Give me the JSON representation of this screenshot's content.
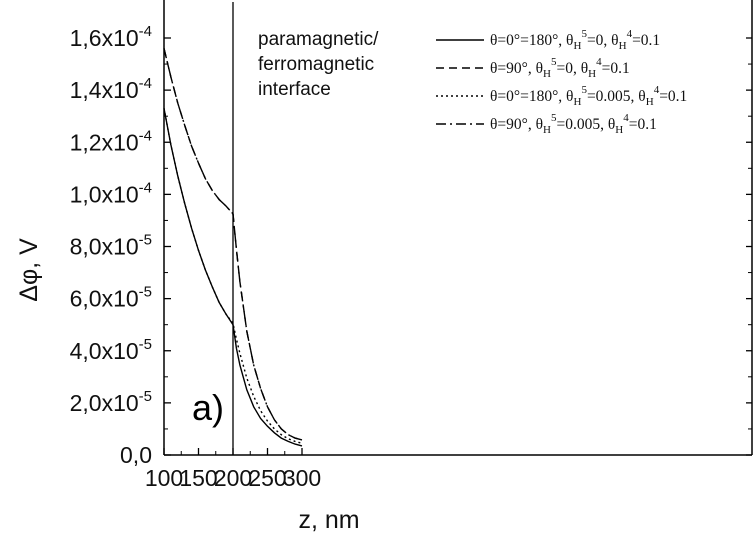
{
  "chart_data": {
    "type": "line",
    "xlabel": "z, nm",
    "ylabel": "Δφ, V",
    "xlim": [
      100,
      300
    ],
    "ylim": [
      0,
      0.00016
    ],
    "x_ticks": [
      100,
      150,
      200,
      250,
      300
    ],
    "x_tick_labels": [
      "100",
      "150",
      "200",
      "250",
      "300"
    ],
    "y_ticks": [
      0,
      2e-05,
      4e-05,
      6e-05,
      8e-05,
      0.0001,
      0.00012,
      0.00014,
      0.00016
    ],
    "y_tick_labels": [
      {
        "mant": "0,0",
        "exp": ""
      },
      {
        "mant": "2,0x10",
        "exp": "-5"
      },
      {
        "mant": "4,0x10",
        "exp": "-5"
      },
      {
        "mant": "6,0x10",
        "exp": "-5"
      },
      {
        "mant": "8,0x10",
        "exp": "-5"
      },
      {
        "mant": "1,0x10",
        "exp": "-4"
      },
      {
        "mant": "1,2x10",
        "exp": "-4"
      },
      {
        "mant": "1,4x10",
        "exp": "-4"
      },
      {
        "mant": "1,6x10",
        "exp": "-4"
      }
    ],
    "grid": false,
    "legend_position": "top-right",
    "annotation": {
      "lines": [
        "paramagnetic/",
        "ferromagnetic",
        "interface"
      ],
      "vertical_line_x": 200
    },
    "panel_label": "a)",
    "series": [
      {
        "legend": [
          {
            "t": "θ=0°=180°, θ"
          },
          {
            "t": "H",
            "sub": true
          },
          {
            "t": "5",
            "sup": true
          },
          {
            "t": "=0, θ"
          },
          {
            "t": "H",
            "sub": true
          },
          {
            "t": "4",
            "sup": true
          },
          {
            "t": "=0.1"
          }
        ],
        "style": "solid",
        "x": [
          100,
          110,
          120,
          130,
          140,
          150,
          160,
          170,
          180,
          190,
          200,
          205,
          210,
          220,
          230,
          240,
          250,
          260,
          270,
          280,
          290,
          300
        ],
        "y": [
          0.000133,
          0.000119,
          0.000107,
          9.65e-05,
          8.7e-05,
          7.85e-05,
          7.1e-05,
          6.45e-05,
          5.85e-05,
          5.4e-05,
          5e-05,
          4.1e-05,
          3.45e-05,
          2.5e-05,
          1.85e-05,
          1.4e-05,
          1.1e-05,
          8.5e-06,
          6.5e-06,
          5.2e-06,
          4.2e-06,
          3.5e-06
        ]
      },
      {
        "legend": [
          {
            "t": "θ=90°, θ"
          },
          {
            "t": "H",
            "sub": true
          },
          {
            "t": "5",
            "sup": true
          },
          {
            "t": "=0, θ"
          },
          {
            "t": "H",
            "sub": true
          },
          {
            "t": "4",
            "sup": true
          },
          {
            "t": "=0.1"
          }
        ],
        "style": "dashed",
        "x": [
          100,
          110,
          120,
          130,
          140,
          150,
          160,
          170,
          180,
          190,
          200,
          205,
          210,
          220,
          230,
          240,
          250,
          260,
          270,
          280,
          290,
          300
        ],
        "y": [
          0.000156,
          0.000145,
          0.000135,
          0.0001265,
          0.0001185,
          0.000112,
          0.000106,
          0.0001015,
          9.8e-05,
          9.55e-05,
          9.25e-05,
          7.9e-05,
          6.65e-05,
          4.75e-05,
          3.45e-05,
          2.55e-05,
          1.85e-05,
          1.35e-05,
          1e-05,
          7.8e-06,
          6.5e-06,
          5.8e-06
        ]
      },
      {
        "legend": [
          {
            "t": "θ=0°=180°, θ"
          },
          {
            "t": "H",
            "sub": true
          },
          {
            "t": "5",
            "sup": true
          },
          {
            "t": "=0.005, θ"
          },
          {
            "t": "H",
            "sub": true
          },
          {
            "t": "4",
            "sup": true
          },
          {
            "t": "=0.1"
          }
        ],
        "style": "dotted",
        "x": [
          100,
          110,
          120,
          130,
          140,
          150,
          160,
          170,
          180,
          190,
          200,
          205,
          210,
          220,
          230,
          240,
          250,
          260,
          270,
          280,
          290,
          300
        ],
        "y": [
          0.000133,
          0.000119,
          0.000107,
          9.65e-05,
          8.7e-05,
          7.85e-05,
          7.1e-05,
          6.45e-05,
          5.85e-05,
          5.4e-05,
          5.05e-05,
          4.45e-05,
          3.9e-05,
          2.95e-05,
          2.25e-05,
          1.7e-05,
          1.3e-05,
          1e-05,
          7.8e-06,
          6.2e-06,
          5.2e-06,
          4.5e-06
        ]
      },
      {
        "legend": [
          {
            "t": "θ=90°, θ"
          },
          {
            "t": "H",
            "sub": true
          },
          {
            "t": "5",
            "sup": true
          },
          {
            "t": "=0.005, θ"
          },
          {
            "t": "H",
            "sub": true
          },
          {
            "t": "4",
            "sup": true
          },
          {
            "t": "=0.1"
          }
        ],
        "style": "dashdot",
        "x": [
          100,
          110,
          120,
          130,
          140,
          150,
          160,
          170,
          180,
          190,
          200,
          205,
          210,
          220,
          230,
          240,
          250,
          260,
          270,
          280,
          290,
          300
        ],
        "y": [
          0.000156,
          0.000145,
          0.000135,
          0.0001265,
          0.0001185,
          0.000112,
          0.000106,
          0.0001015,
          9.8e-05,
          9.55e-05,
          9.25e-05,
          7.9e-05,
          6.65e-05,
          4.75e-05,
          3.45e-05,
          2.55e-05,
          1.85e-05,
          1.35e-05,
          1e-05,
          7.8e-06,
          6.5e-06,
          5.8e-06
        ]
      }
    ]
  }
}
